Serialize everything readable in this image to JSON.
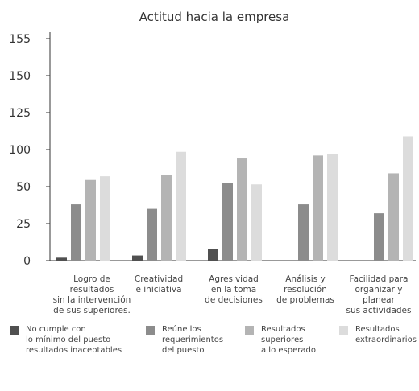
{
  "chart_data": {
    "type": "bar",
    "title": "Actitud hacia la empresa",
    "xlabel": "",
    "ylabel": "",
    "y_ticks": [
      "0",
      "25",
      "50",
      "100",
      "125",
      "150",
      "155"
    ],
    "categories": [
      "Logro de\nresultados\nsin la intervención\nde sus superiores.",
      "Creatividad\ne iniciativa",
      "Agresividad\nen la toma\nde decisiones",
      "Análisis y\nresolución\nde problemas",
      "Facilidad para\norganizar y\nplanear\nsus actividades"
    ],
    "series": [
      {
        "name": "No cumple con\nlo mínimo del puesto\nresultados inaceptables",
        "color": "#505050",
        "values": [
          2,
          3.5,
          8,
          0,
          0
        ]
      },
      {
        "name": "Reúne los\nrequerimientos\ndel puesto",
        "color": "#8c8c8c",
        "values": [
          38,
          35,
          55,
          38,
          32
        ]
      },
      {
        "name": "Resultados\nsuperiores\na lo esperado",
        "color": "#b4b4b4",
        "values": [
          59,
          66,
          88,
          92,
          68
        ]
      },
      {
        "name": "Resultados\nextraordinarios",
        "color": "#dcdcdc",
        "values": [
          64,
          97,
          53,
          94,
          109
        ]
      }
    ],
    "grid": false,
    "legend_position": "bottom"
  }
}
